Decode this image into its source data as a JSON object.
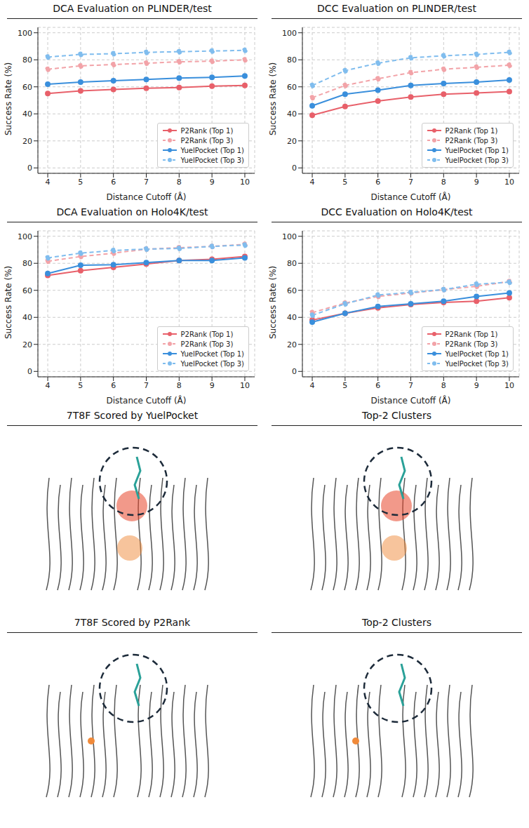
{
  "chart_data": [
    {
      "type": "line",
      "title": "DCA Evaluation on PLINDER/test",
      "x_label": "Distance Cutoff (Å)",
      "y_label": "Success Rate (%)",
      "x": [
        4,
        5,
        6,
        7,
        8,
        9,
        10
      ],
      "xlim": [
        3.7,
        10.3
      ],
      "xticks": [
        4,
        5,
        6,
        7,
        8,
        9,
        10
      ],
      "ylim": [
        -4,
        104
      ],
      "yticks": [
        0,
        20,
        40,
        60,
        80,
        100
      ],
      "grid": true,
      "legend": "lower right",
      "marker": "circle",
      "series": [
        {
          "name": "P2Rank (Top 1)",
          "color": "#e8606a",
          "line_style": "solid",
          "values": [
            55,
            57,
            58,
            59,
            59.5,
            60.5,
            61
          ]
        },
        {
          "name": "P2Rank (Top 3)",
          "color": "#f2a3a8",
          "line_style": "dashed",
          "values": [
            73,
            75.5,
            76.5,
            77.5,
            78.5,
            79,
            80
          ]
        },
        {
          "name": "YuelPocket (Top 1)",
          "color": "#3a8fdc",
          "line_style": "solid",
          "values": [
            62,
            63.5,
            64.5,
            65.5,
            66.5,
            67,
            68
          ]
        },
        {
          "name": "YuelPocket (Top 3)",
          "color": "#80bdee",
          "line_style": "dashed",
          "values": [
            82,
            84,
            84.5,
            85.5,
            86,
            86.5,
            87
          ]
        }
      ]
    },
    {
      "type": "line",
      "title": "DCC Evaluation on PLINDER/test",
      "x_label": "Distance Cutoff (Å)",
      "y_label": "Success Rate (%)",
      "x": [
        4,
        5,
        6,
        7,
        8,
        9,
        10
      ],
      "xlim": [
        3.7,
        10.3
      ],
      "xticks": [
        4,
        5,
        6,
        7,
        8,
        9,
        10
      ],
      "ylim": [
        -4,
        104
      ],
      "yticks": [
        0,
        20,
        40,
        60,
        80,
        100
      ],
      "grid": true,
      "legend": "lower right",
      "marker": "circle",
      "series": [
        {
          "name": "P2Rank (Top 1)",
          "color": "#e8606a",
          "line_style": "solid",
          "values": [
            39,
            45.5,
            49.5,
            52.5,
            54.5,
            55.5,
            56.5
          ]
        },
        {
          "name": "P2Rank (Top 3)",
          "color": "#f2a3a8",
          "line_style": "dashed",
          "values": [
            52,
            61,
            66,
            70.5,
            73,
            74.5,
            76
          ]
        },
        {
          "name": "YuelPocket (Top 1)",
          "color": "#3a8fdc",
          "line_style": "solid",
          "values": [
            46,
            54.5,
            57.5,
            61,
            62.5,
            63.5,
            65
          ]
        },
        {
          "name": "YuelPocket (Top 3)",
          "color": "#80bdee",
          "line_style": "dashed",
          "values": [
            61,
            72,
            77.5,
            81.5,
            83,
            84,
            85.5
          ]
        }
      ]
    },
    {
      "type": "line",
      "title": "DCA Evaluation on Holo4K/test",
      "x_label": "Distance Cutoff (Å)",
      "y_label": "Success Rate (%)",
      "x": [
        4,
        5,
        6,
        7,
        8,
        9,
        10
      ],
      "xlim": [
        3.7,
        10.3
      ],
      "xticks": [
        4,
        5,
        6,
        7,
        8,
        9,
        10
      ],
      "ylim": [
        -4,
        104
      ],
      "yticks": [
        0,
        20,
        40,
        60,
        80,
        100
      ],
      "grid": true,
      "legend": "lower right",
      "marker": "circle",
      "series": [
        {
          "name": "P2Rank (Top 1)",
          "color": "#e8606a",
          "line_style": "solid",
          "values": [
            71,
            74.5,
            77,
            79.5,
            82,
            83,
            85
          ]
        },
        {
          "name": "P2Rank (Top 3)",
          "color": "#f2a3a8",
          "line_style": "dashed",
          "values": [
            81.5,
            85,
            87.5,
            90.5,
            91.5,
            92.5,
            94
          ]
        },
        {
          "name": "YuelPocket (Top 1)",
          "color": "#3a8fdc",
          "line_style": "solid",
          "values": [
            72.5,
            78.5,
            79,
            80.5,
            82,
            82,
            84
          ]
        },
        {
          "name": "YuelPocket (Top 3)",
          "color": "#80bdee",
          "line_style": "dashed",
          "values": [
            84,
            87.5,
            89.5,
            90.5,
            91,
            92.5,
            93.5
          ]
        }
      ]
    },
    {
      "type": "line",
      "title": "DCC Evaluation on Holo4K/test",
      "x_label": "Distance Cutoff (Å)",
      "y_label": "Success Rate (%)",
      "x": [
        4,
        5,
        6,
        7,
        8,
        9,
        10
      ],
      "xlim": [
        3.7,
        10.3
      ],
      "xticks": [
        4,
        5,
        6,
        7,
        8,
        9,
        10
      ],
      "ylim": [
        -4,
        104
      ],
      "yticks": [
        0,
        20,
        40,
        60,
        80,
        100
      ],
      "grid": true,
      "legend": "lower right",
      "marker": "circle",
      "series": [
        {
          "name": "P2Rank (Top 1)",
          "color": "#e8606a",
          "line_style": "solid",
          "values": [
            38,
            43,
            47,
            49.5,
            51,
            52,
            54.5
          ]
        },
        {
          "name": "P2Rank (Top 3)",
          "color": "#f2a3a8",
          "line_style": "dashed",
          "values": [
            43.5,
            50.5,
            55.5,
            58,
            60.5,
            63,
            66.5
          ]
        },
        {
          "name": "YuelPocket (Top 1)",
          "color": "#3a8fdc",
          "line_style": "solid",
          "values": [
            36.5,
            43,
            48,
            50,
            52,
            55.5,
            58
          ]
        },
        {
          "name": "YuelPocket (Top 3)",
          "color": "#80bdee",
          "line_style": "dashed",
          "values": [
            41.5,
            50,
            56.5,
            58.5,
            60.5,
            64.5,
            66
          ]
        }
      ]
    }
  ],
  "panels": [
    {
      "title": "7T8F Scored by YuelPocket"
    },
    {
      "title": "Top-2 Clusters"
    },
    {
      "title": "7T8F Scored by P2Rank"
    },
    {
      "title": "Top-2 Clusters"
    }
  ]
}
